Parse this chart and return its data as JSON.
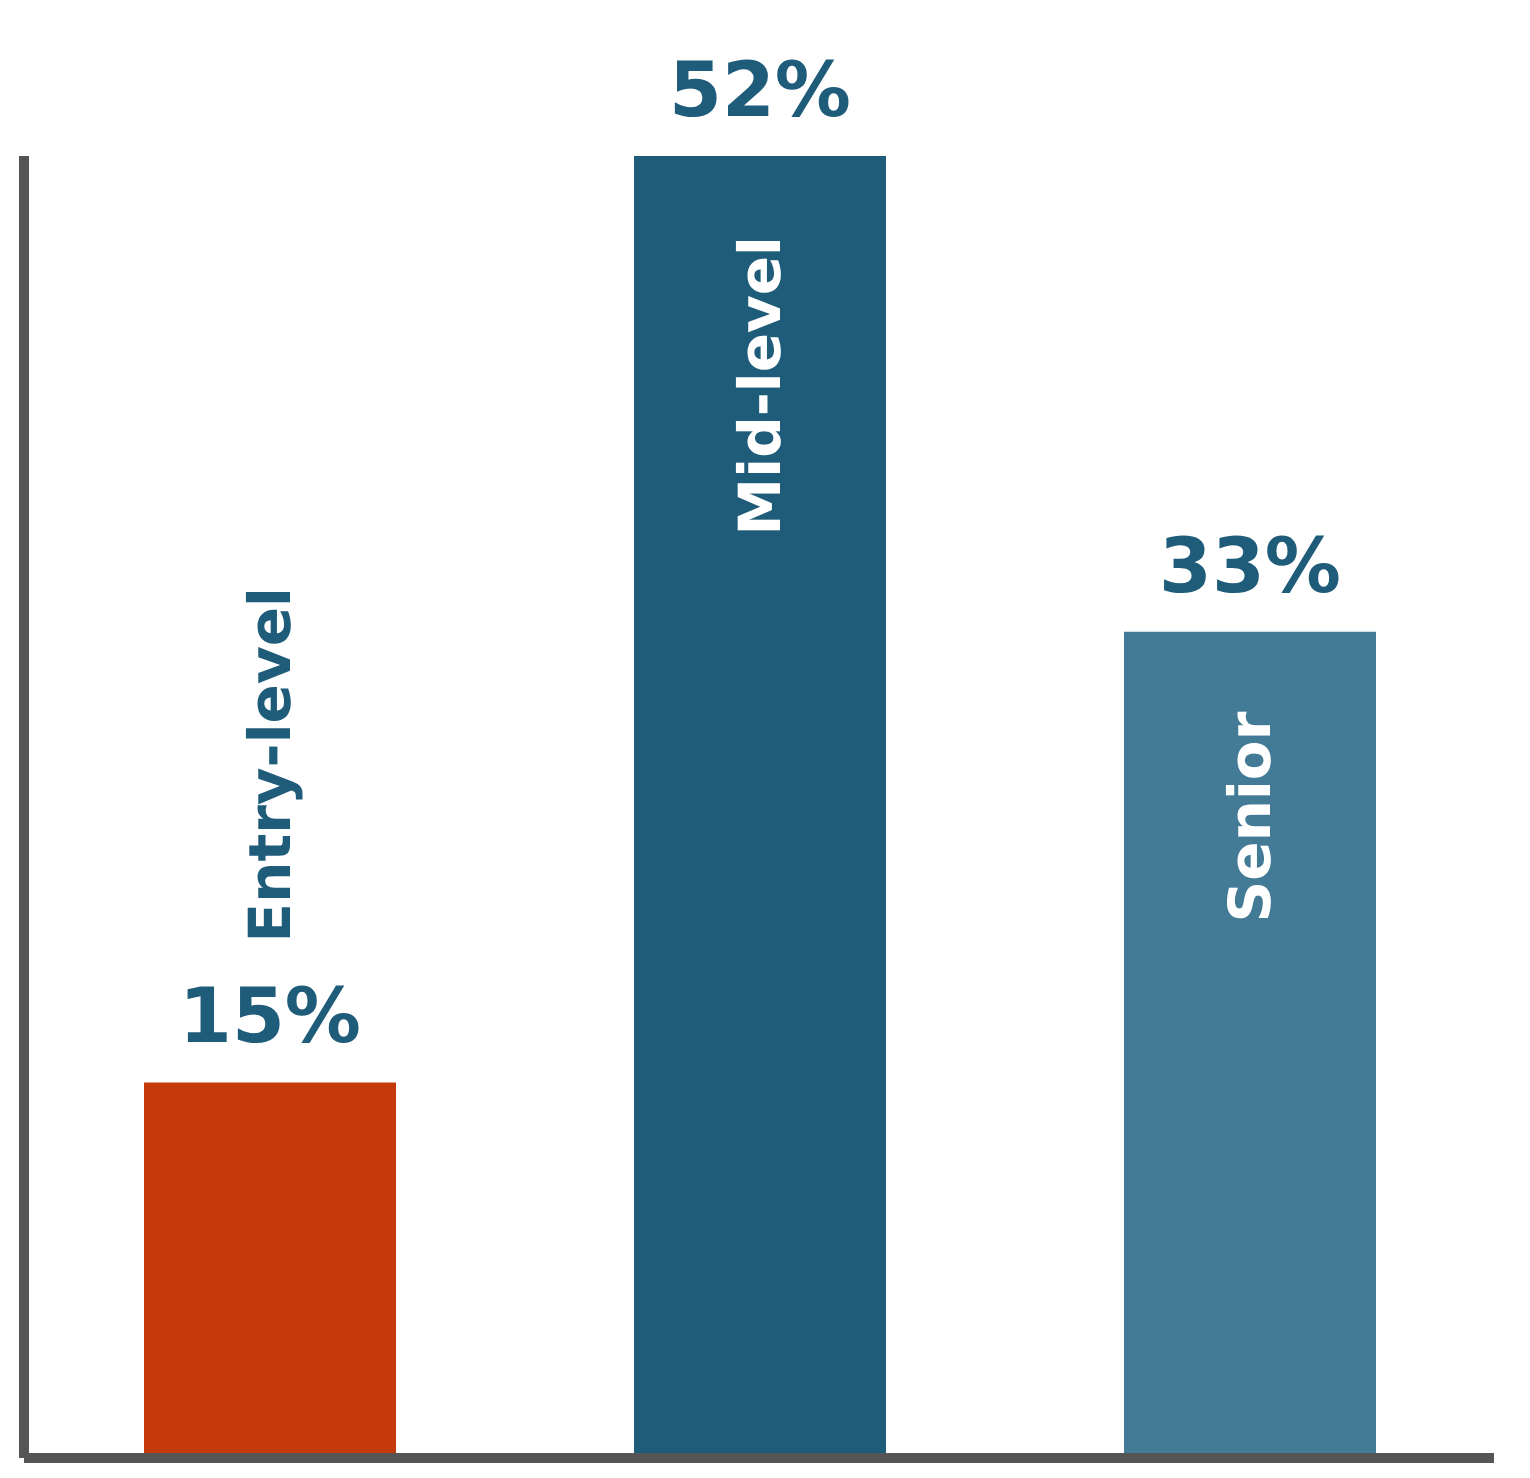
{
  "chart_data": {
    "type": "bar",
    "categories": [
      "Entry-level",
      "Mid-level",
      "Senior"
    ],
    "values": [
      15,
      52,
      33
    ],
    "colors": [
      "#c43a0a",
      "#1e5c7a",
      "#437a96"
    ],
    "value_labels": [
      "15%",
      "52%",
      "33%"
    ],
    "grid": false,
    "legend": false
  }
}
